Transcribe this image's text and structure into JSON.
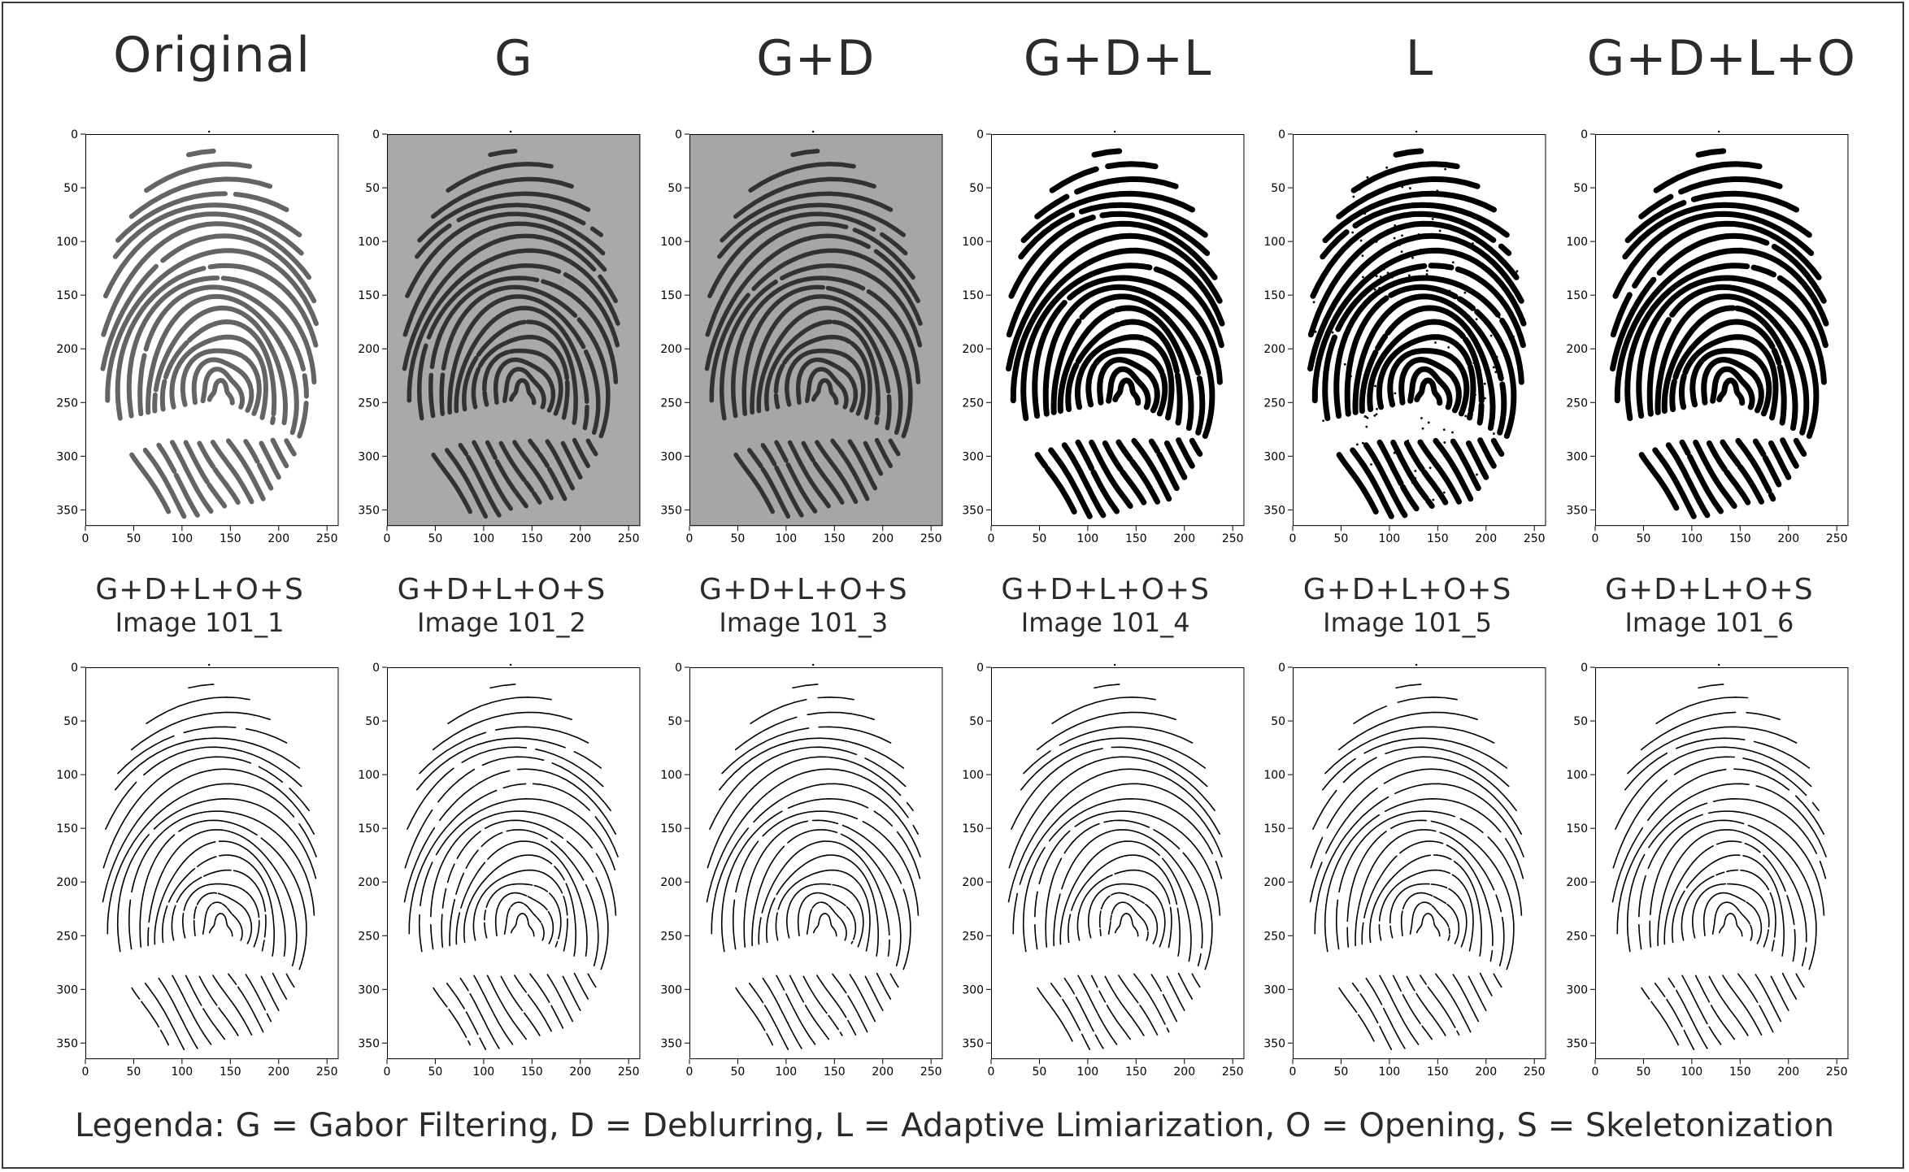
{
  "column_titles": [
    "Original",
    "G",
    "G+D",
    "G+D+L",
    "L",
    "G+D+L+O"
  ],
  "skeleton_panels": [
    {
      "label": "G+D+L+O+S",
      "image": "Image 101_1"
    },
    {
      "label": "G+D+L+O+S",
      "image": "Image 101_2"
    },
    {
      "label": "G+D+L+O+S",
      "image": "Image 101_3"
    },
    {
      "label": "G+D+L+O+S",
      "image": "Image 101_4"
    },
    {
      "label": "G+D+L+O+S",
      "image": "Image 101_5"
    },
    {
      "label": "G+D+L+O+S",
      "image": "Image 101_6"
    }
  ],
  "axes": {
    "x_ticks": [
      "0",
      "50",
      "100",
      "150",
      "200",
      "250"
    ],
    "y_ticks": [
      "0",
      "50",
      "100",
      "150",
      "200",
      "250",
      "300",
      "350"
    ]
  },
  "top_panel_styles": [
    {
      "background": "#ffffff",
      "ridge_color": "#4a4a4a",
      "style": "original"
    },
    {
      "background": "#a9a9a9",
      "ridge_color": "#262626",
      "style": "gabor"
    },
    {
      "background": "#a6a6a6",
      "ridge_color": "#262626",
      "style": "gabor"
    },
    {
      "background": "#ffffff",
      "ridge_color": "#000000",
      "style": "binary"
    },
    {
      "background": "#ffffff",
      "ridge_color": "#000000",
      "style": "binary-noisy"
    },
    {
      "background": "#ffffff",
      "ridge_color": "#000000",
      "style": "binary"
    }
  ],
  "legend": "Legenda: G = Gabor Filtering, D = Deblurring, L = Adaptive Limiarization, O = Opening, S = Skeletonization"
}
